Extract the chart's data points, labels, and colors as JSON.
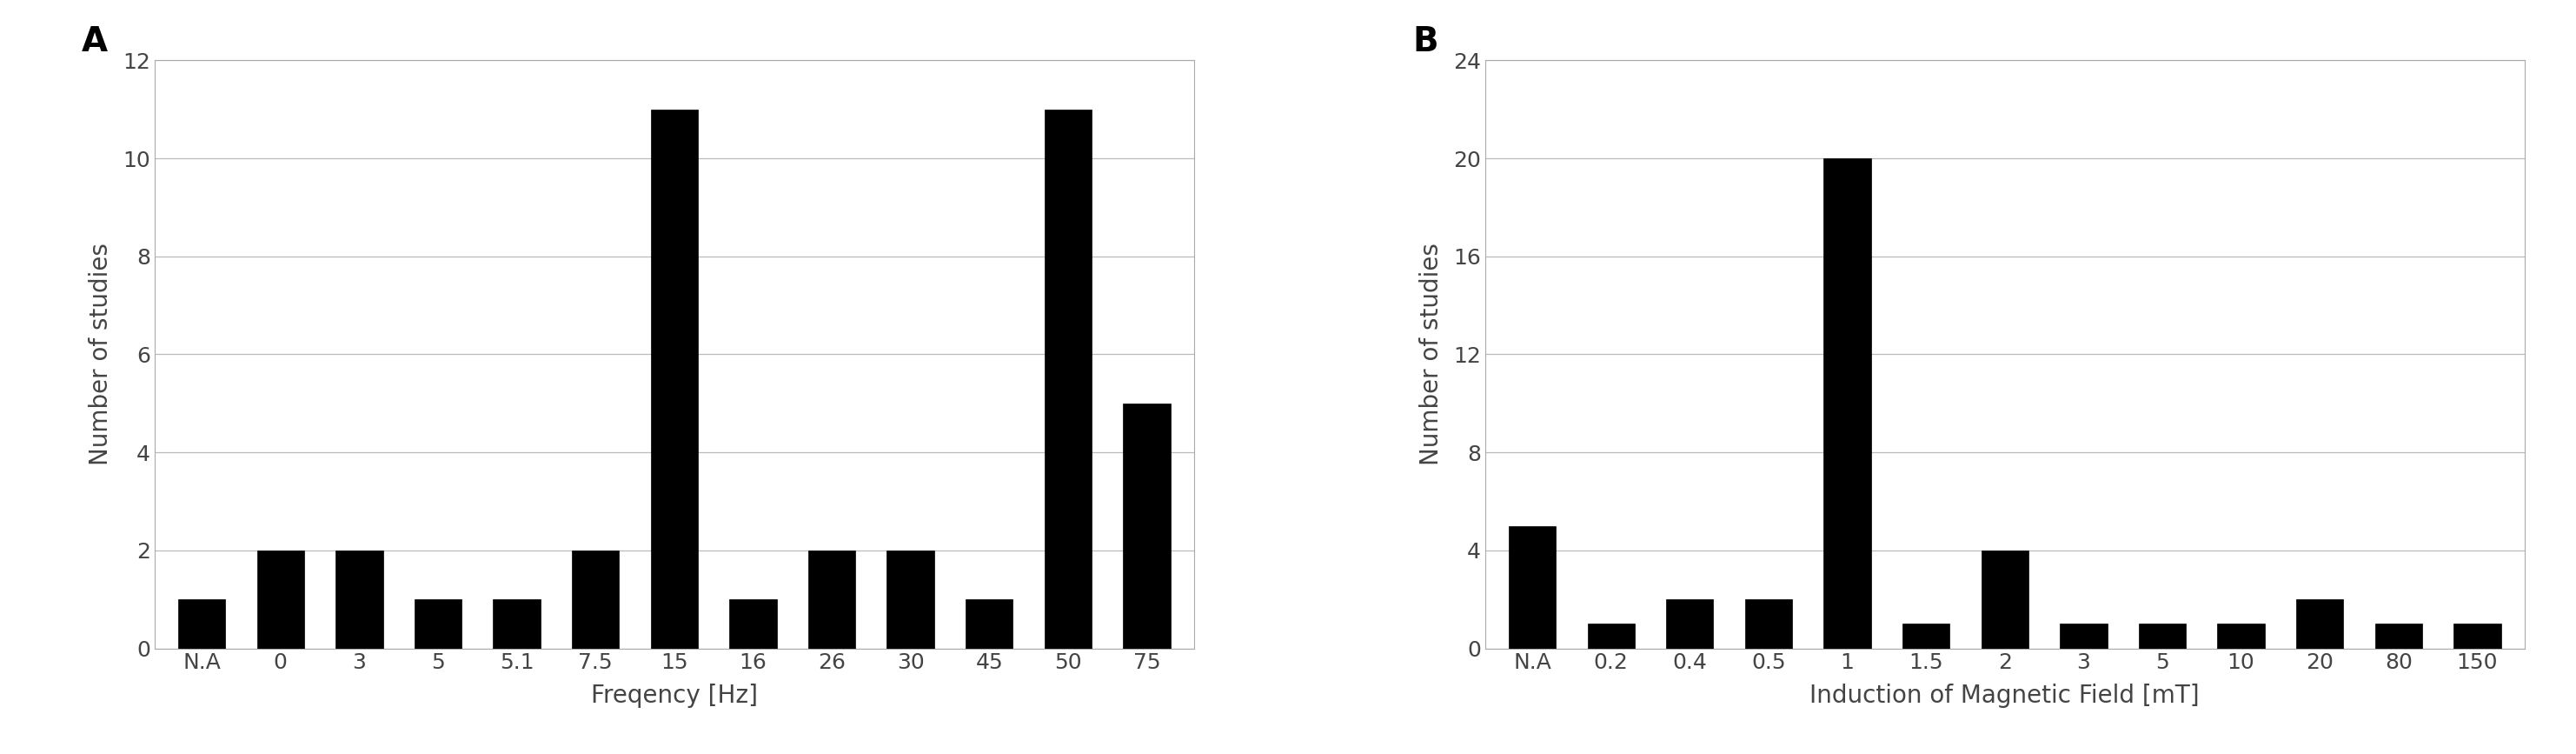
{
  "chart_A": {
    "categories": [
      "N.A",
      "0",
      "3",
      "5",
      "5.1",
      "7.5",
      "15",
      "16",
      "26",
      "30",
      "45",
      "50",
      "75"
    ],
    "values": [
      1,
      2,
      2,
      1,
      1,
      2,
      11,
      1,
      2,
      2,
      1,
      11,
      5
    ],
    "xlabel": "Freqency [Hz]",
    "ylabel": "Number of studies",
    "ylim": [
      0,
      12
    ],
    "yticks": [
      0,
      2,
      4,
      6,
      8,
      10,
      12
    ],
    "label": "A"
  },
  "chart_B": {
    "categories": [
      "N.A",
      "0.2",
      "0.4",
      "0.5",
      "1",
      "1.5",
      "2",
      "3",
      "5",
      "10",
      "20",
      "80",
      "150"
    ],
    "values": [
      5,
      1,
      2,
      2,
      20,
      1,
      4,
      1,
      1,
      1,
      2,
      1,
      1
    ],
    "xlabel": "Induction of Magnetic Field [mT]",
    "ylabel": "Number of studies",
    "ylim": [
      0,
      24
    ],
    "yticks": [
      0,
      4,
      8,
      12,
      16,
      20,
      24
    ],
    "label": "B"
  },
  "bar_color": "#000000",
  "background_color": "#ffffff",
  "grid_color": "#bbbbbb",
  "bar_edge_color": "#000000",
  "tick_fontsize": 18,
  "axis_label_fontsize": 20,
  "panel_label_fontsize": 28
}
